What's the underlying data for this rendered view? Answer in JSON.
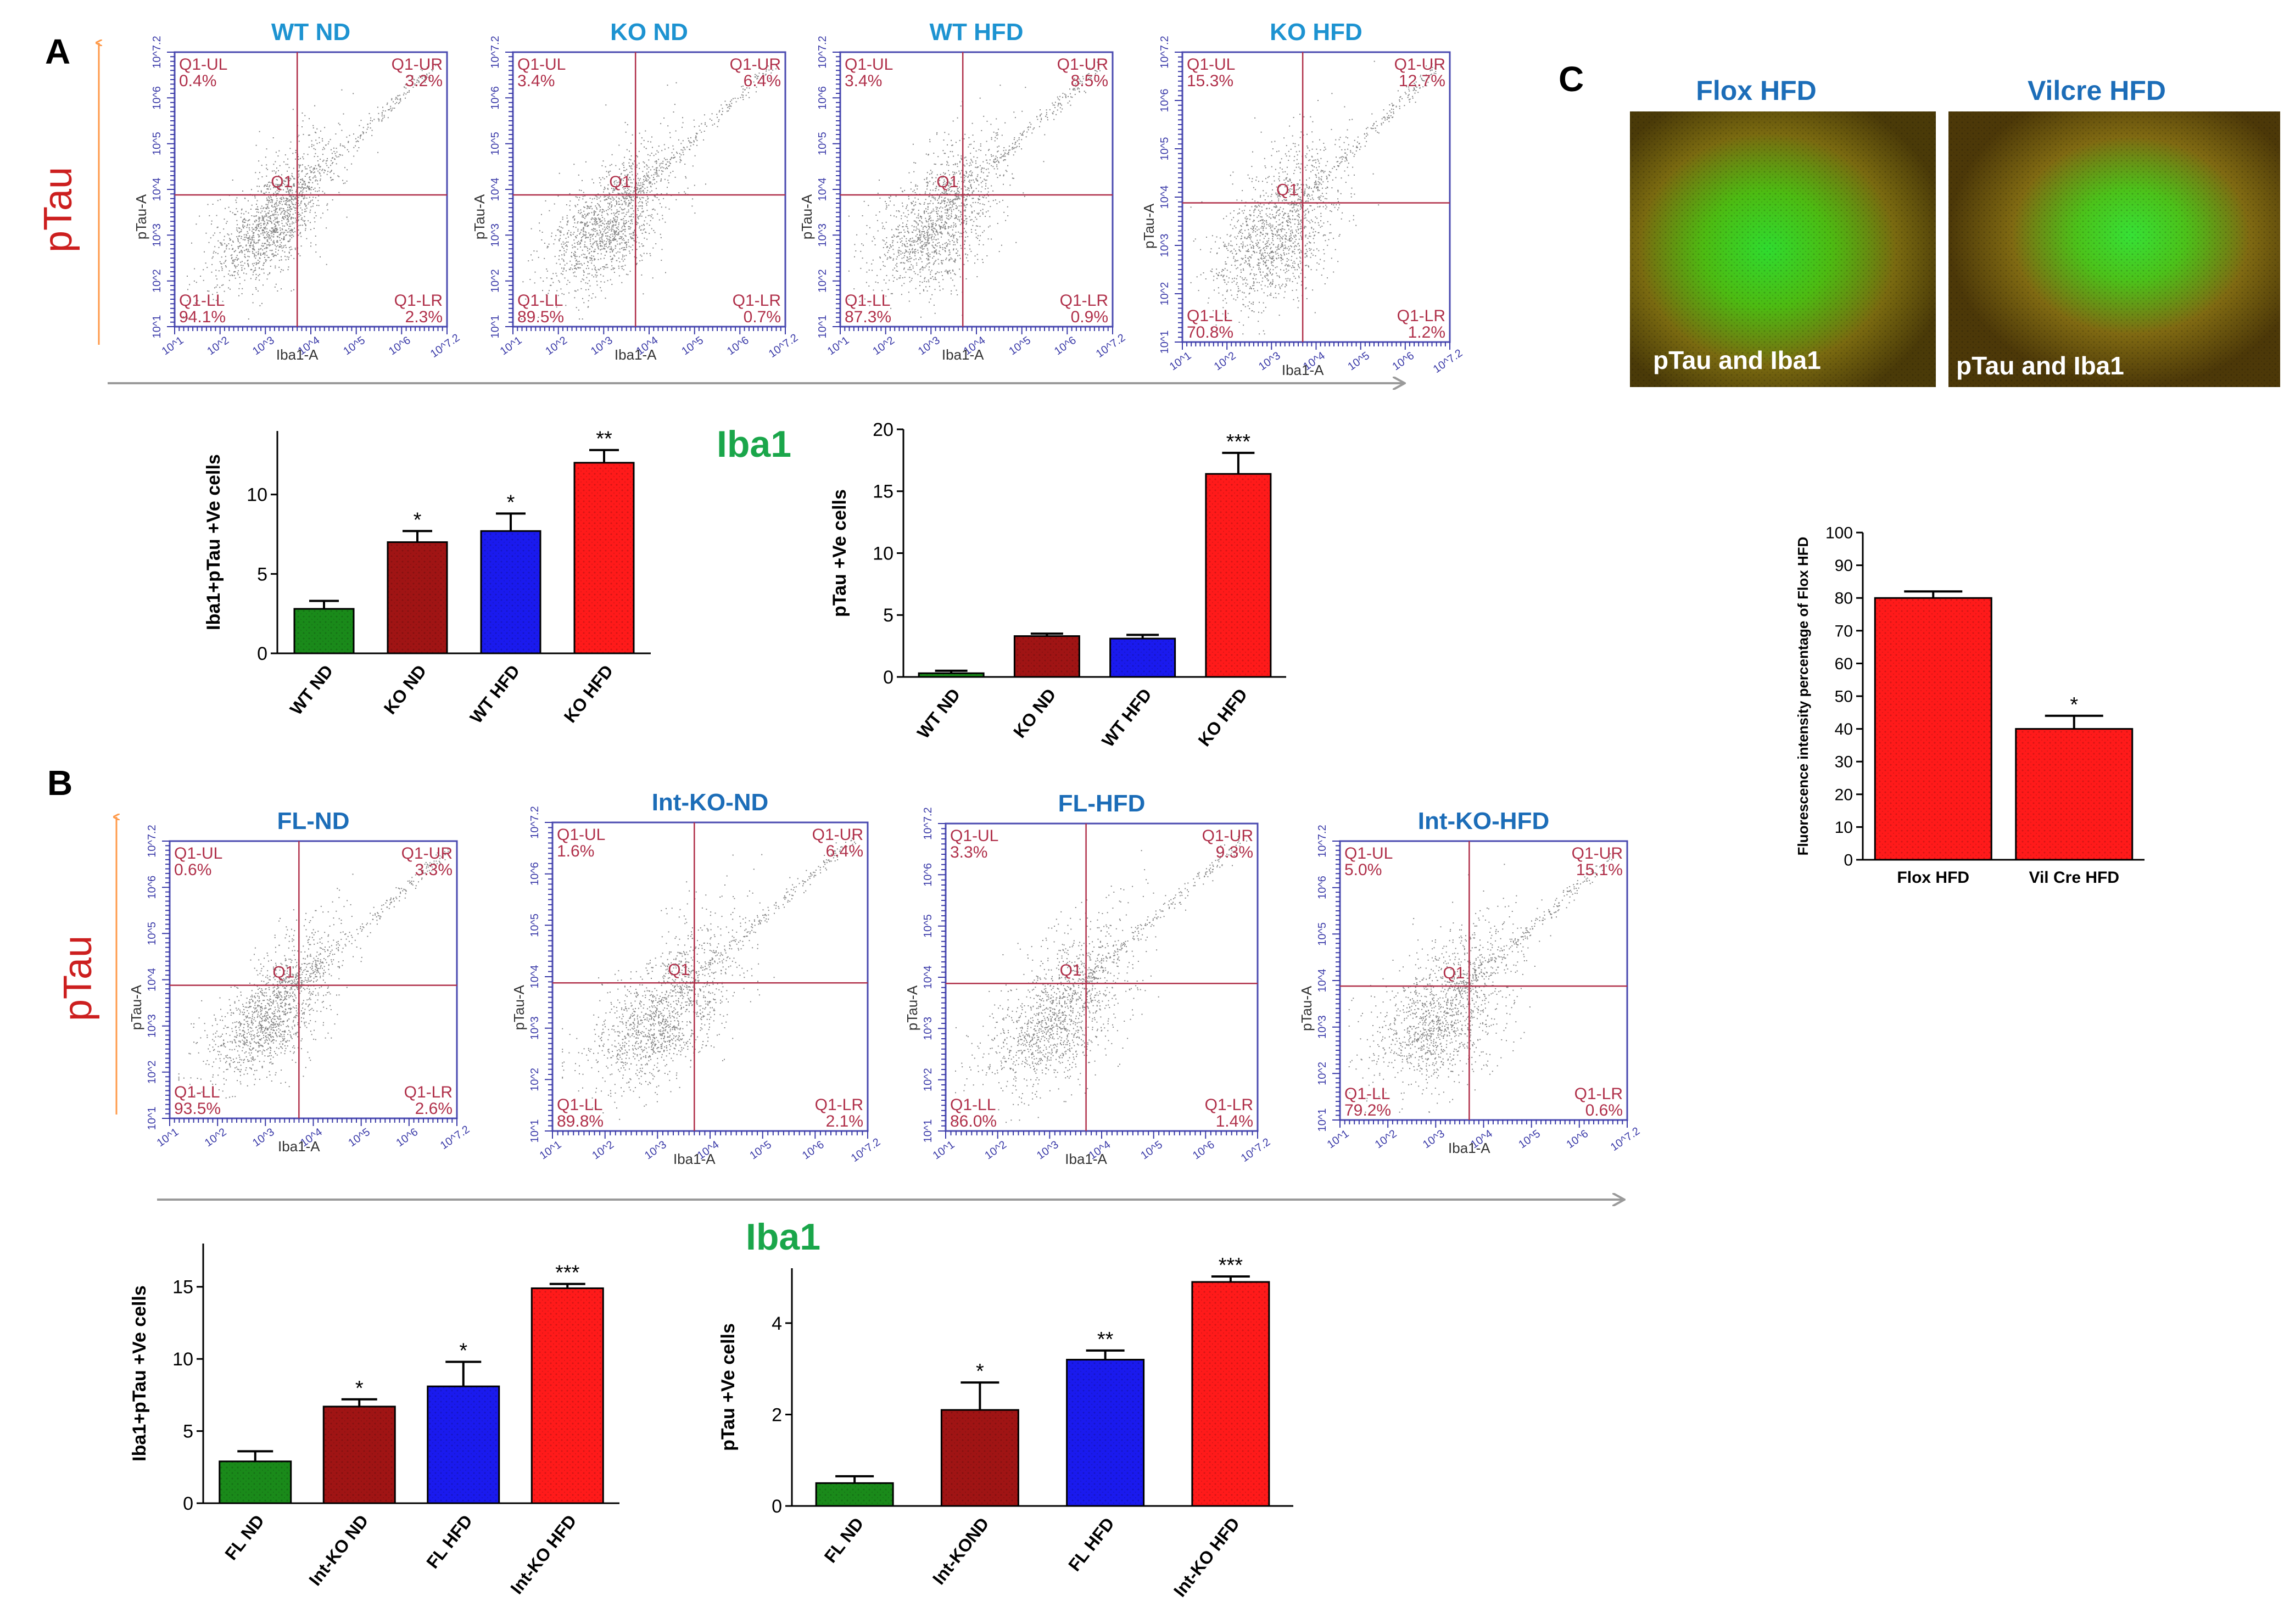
{
  "colors": {
    "flow_label": "#b0304a",
    "flow_axis": "#3a3aa8",
    "plot_border": "#4a4ab0",
    "title_blue": "#1d93d1",
    "title_darkblue": "#1c6db8",
    "iba1_green": "#1aa64a",
    "ptau_red": "#cc1f1f",
    "arrow_orange": "#ff9a4a",
    "arrow_gray": "#9a9a9a",
    "bar_green": "#1a8a1a",
    "bar_darkred": "#a01414",
    "bar_blue": "#1a1aee",
    "bar_red": "#ff1a1a"
  },
  "panel_labels": {
    "a": "A",
    "b": "B",
    "c": "C"
  },
  "side_labels": {
    "ptau_a": "pTau",
    "ptau_b": "pTau",
    "iba1_a": "Iba1",
    "iba1_b": "Iba1"
  },
  "flow_common": {
    "x_axis": "Iba1-A",
    "y_axis": "pTau-A",
    "center": "Q1",
    "ul": "Q1-UL",
    "ur": "Q1-UR",
    "ll": "Q1-LL",
    "lr": "Q1-LR",
    "ticks": [
      "10^1",
      "10^2",
      "10^3",
      "10^4",
      "10^5",
      "10^6",
      "10^7.2"
    ]
  },
  "flow_a": [
    {
      "title": "WT ND",
      "ul": "0.4%",
      "ur": "3.2%",
      "ll": "94.1%",
      "lr": "2.3%"
    },
    {
      "title": "KO ND",
      "ul": "3.4%",
      "ur": "6.4%",
      "ll": "89.5%",
      "lr": "0.7%"
    },
    {
      "title": "WT HFD",
      "ul": "3.4%",
      "ur": "8.5%",
      "ll": "87.3%",
      "lr": "0.9%"
    },
    {
      "title": "KO HFD",
      "ul": "15.3%",
      "ur": "12.7%",
      "ll": "70.8%",
      "lr": "1.2%"
    }
  ],
  "flow_b": [
    {
      "title": "FL-ND",
      "ul": "0.6%",
      "ur": "3.3%",
      "ll": "93.5%",
      "lr": "2.6%"
    },
    {
      "title": "Int-KO-ND",
      "ul": "1.6%",
      "ur": "6.4%",
      "ll": "89.8%",
      "lr": "2.1%"
    },
    {
      "title": "FL-HFD",
      "ul": "3.3%",
      "ur": "9.3%",
      "ll": "86.0%",
      "lr": "1.4%"
    },
    {
      "title": "Int-KO-HFD",
      "ul": "5.0%",
      "ur": "15.1%",
      "ll": "79.2%",
      "lr": "0.6%"
    }
  ],
  "images_c": [
    {
      "title": "Flox HFD",
      "caption": "pTau and Iba1"
    },
    {
      "title": "Vilcre HFD",
      "caption": "pTau and Iba1"
    }
  ],
  "chart_data": [
    {
      "id": "a_left",
      "type": "bar",
      "title": "",
      "ylabel": "Iba1+pTau +Ve cells",
      "xlabel": "",
      "ylim": [
        0,
        14
      ],
      "yticks": [
        0,
        5,
        10
      ],
      "categories": [
        "WT ND",
        "KO ND",
        "WT HFD",
        "KO HFD"
      ],
      "values": [
        2.8,
        7.0,
        7.7,
        12.0
      ],
      "errors": [
        0.5,
        0.7,
        1.1,
        0.8
      ],
      "annotations": [
        "",
        "*",
        "*",
        "**"
      ],
      "colors": [
        "#1a8a1a",
        "#a01414",
        "#1a1aee",
        "#ff1a1a"
      ]
    },
    {
      "id": "a_right",
      "type": "bar",
      "title": "",
      "ylabel": "pTau +Ve cells",
      "xlabel": "",
      "ylim": [
        0,
        20
      ],
      "yticks": [
        0,
        5,
        10,
        15,
        20
      ],
      "categories": [
        "WT ND",
        "KO ND",
        "WT HFD",
        "KO HFD"
      ],
      "values": [
        0.3,
        3.3,
        3.1,
        16.4
      ],
      "errors": [
        0.2,
        0.2,
        0.3,
        1.7
      ],
      "annotations": [
        "",
        "",
        "",
        "***"
      ],
      "colors": [
        "#1a8a1a",
        "#a01414",
        "#1a1aee",
        "#ff1a1a"
      ]
    },
    {
      "id": "b_left",
      "type": "bar",
      "title": "",
      "ylabel": "Iba1+pTau +Ve cells",
      "xlabel": "",
      "ylim": [
        0,
        18
      ],
      "yticks": [
        0,
        5,
        10,
        15
      ],
      "categories": [
        "FL ND",
        "Int-KO ND",
        "FL HFD",
        "Int-KO HFD"
      ],
      "values": [
        2.9,
        6.7,
        8.1,
        14.9
      ],
      "errors": [
        0.7,
        0.5,
        1.7,
        0.3
      ],
      "annotations": [
        "",
        "*",
        "*",
        "***"
      ],
      "colors": [
        "#1a8a1a",
        "#a01414",
        "#1a1aee",
        "#ff1a1a"
      ]
    },
    {
      "id": "b_right",
      "type": "bar",
      "title": "",
      "ylabel": "pTau +Ve cells",
      "xlabel": "",
      "ylim": [
        0,
        5.2
      ],
      "yticks": [
        0,
        2,
        4
      ],
      "categories": [
        "FL ND",
        "Int-KOND",
        "FL HFD",
        "Int-KO HFD"
      ],
      "values": [
        0.5,
        2.1,
        3.2,
        4.9
      ],
      "errors": [
        0.15,
        0.6,
        0.2,
        0.12
      ],
      "annotations": [
        "",
        "*",
        "**",
        "***"
      ],
      "colors": [
        "#1a8a1a",
        "#a01414",
        "#1a1aee",
        "#ff1a1a"
      ]
    },
    {
      "id": "c",
      "type": "bar",
      "title": "",
      "ylabel": "Fluorescence intensity percentage of Flox HFD",
      "xlabel": "",
      "ylim": [
        0,
        100
      ],
      "yticks": [
        0,
        10,
        20,
        30,
        40,
        50,
        60,
        70,
        80,
        90,
        100
      ],
      "categories": [
        "Flox HFD",
        "Vil Cre HFD"
      ],
      "values": [
        80,
        40
      ],
      "errors": [
        2,
        4
      ],
      "annotations": [
        "",
        "*"
      ],
      "colors": [
        "#ff1a1a",
        "#ff1a1a"
      ]
    }
  ]
}
